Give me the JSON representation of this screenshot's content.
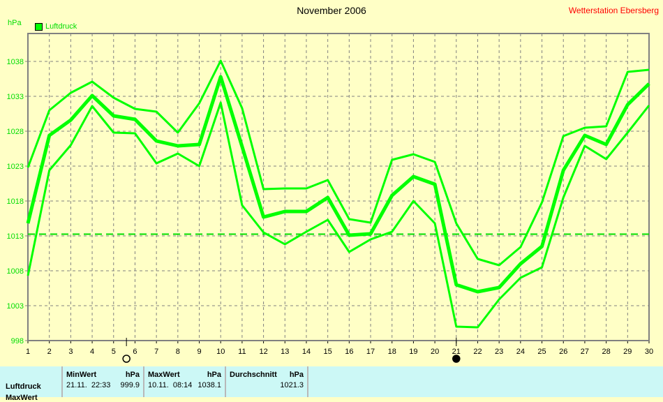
{
  "title": "November 2006",
  "station": "Wetterstation Ebersberg",
  "unit": "hPa",
  "legend": "Luftdruck",
  "colors": {
    "series": "#00ff00",
    "axis_text": "#00dd00",
    "station": "#ff0000",
    "background": "#ffffc6",
    "table": "#ccf8f6"
  },
  "chart_data": {
    "type": "line",
    "title": "November 2006",
    "ylabel": "hPa",
    "xlabel": "",
    "ylim": [
      998,
      1042
    ],
    "yticks": [
      998,
      1003,
      1008,
      1013,
      1018,
      1023,
      1028,
      1033,
      1038
    ],
    "x": [
      1,
      2,
      3,
      4,
      5,
      6,
      7,
      8,
      9,
      10,
      11,
      12,
      13,
      14,
      15,
      16,
      17,
      18,
      19,
      20,
      21,
      22,
      23,
      24,
      25,
      26,
      27,
      28,
      29,
      30
    ],
    "grid": true,
    "series": [
      {
        "name": "Luftdruck max",
        "width": 3,
        "values": [
          1022.8,
          1031,
          1033.5,
          1035.1,
          1032.8,
          1031.2,
          1030.8,
          1027.8,
          1032,
          1038.1,
          1031.3,
          1019.7,
          1019.8,
          1019.8,
          1021,
          1015.4,
          1014.9,
          1023.9,
          1024.7,
          1023.6,
          1014.8,
          1009.7,
          1008.8,
          1011.4,
          1017.8,
          1027.3,
          1028.5,
          1028.7,
          1036.5,
          1036.8
        ]
      },
      {
        "name": "Luftdruck",
        "width": 5,
        "values": [
          1014.8,
          1027.4,
          1029.6,
          1033.1,
          1030.2,
          1029.7,
          1026.6,
          1025.9,
          1026.1,
          1035.8,
          1025.8,
          1015.7,
          1016.5,
          1016.5,
          1018.5,
          1013.1,
          1013.3,
          1018.8,
          1021.5,
          1020.4,
          1006,
          1005,
          1005.6,
          1009,
          1011.5,
          1022.4,
          1027.4,
          1026.1,
          1031.8,
          1034.8
        ]
      },
      {
        "name": "Luftdruck min",
        "width": 3,
        "values": [
          1007.3,
          1022.4,
          1026,
          1031.6,
          1027.8,
          1027.7,
          1023.4,
          1024.8,
          1023,
          1032.1,
          1017.4,
          1013.5,
          1011.8,
          1013.6,
          1015.3,
          1010.7,
          1012.5,
          1013.6,
          1018,
          1014.8,
          1000,
          999.9,
          1003.9,
          1007,
          1008.5,
          1018.5,
          1025.9,
          1024,
          1027.8,
          1031.7
        ]
      }
    ],
    "reference_line": 1013.25,
    "moon_markers": [
      {
        "day": 5.6,
        "phase": "full-moon"
      },
      {
        "day": 21,
        "phase": "new-moon"
      }
    ]
  },
  "table": {
    "row_label": "Luftdruck",
    "row2_label": "MaxWert",
    "min": {
      "header": "MinWert",
      "unit": "hPa",
      "date": "21.11.  22:33",
      "value": "999.9"
    },
    "max": {
      "header": "MaxWert",
      "unit": "hPa",
      "date": "10.11.  08:14",
      "value": "1038.1"
    },
    "avg": {
      "header": "Durchschnitt",
      "unit": "hPa",
      "value": "1021.3"
    }
  }
}
